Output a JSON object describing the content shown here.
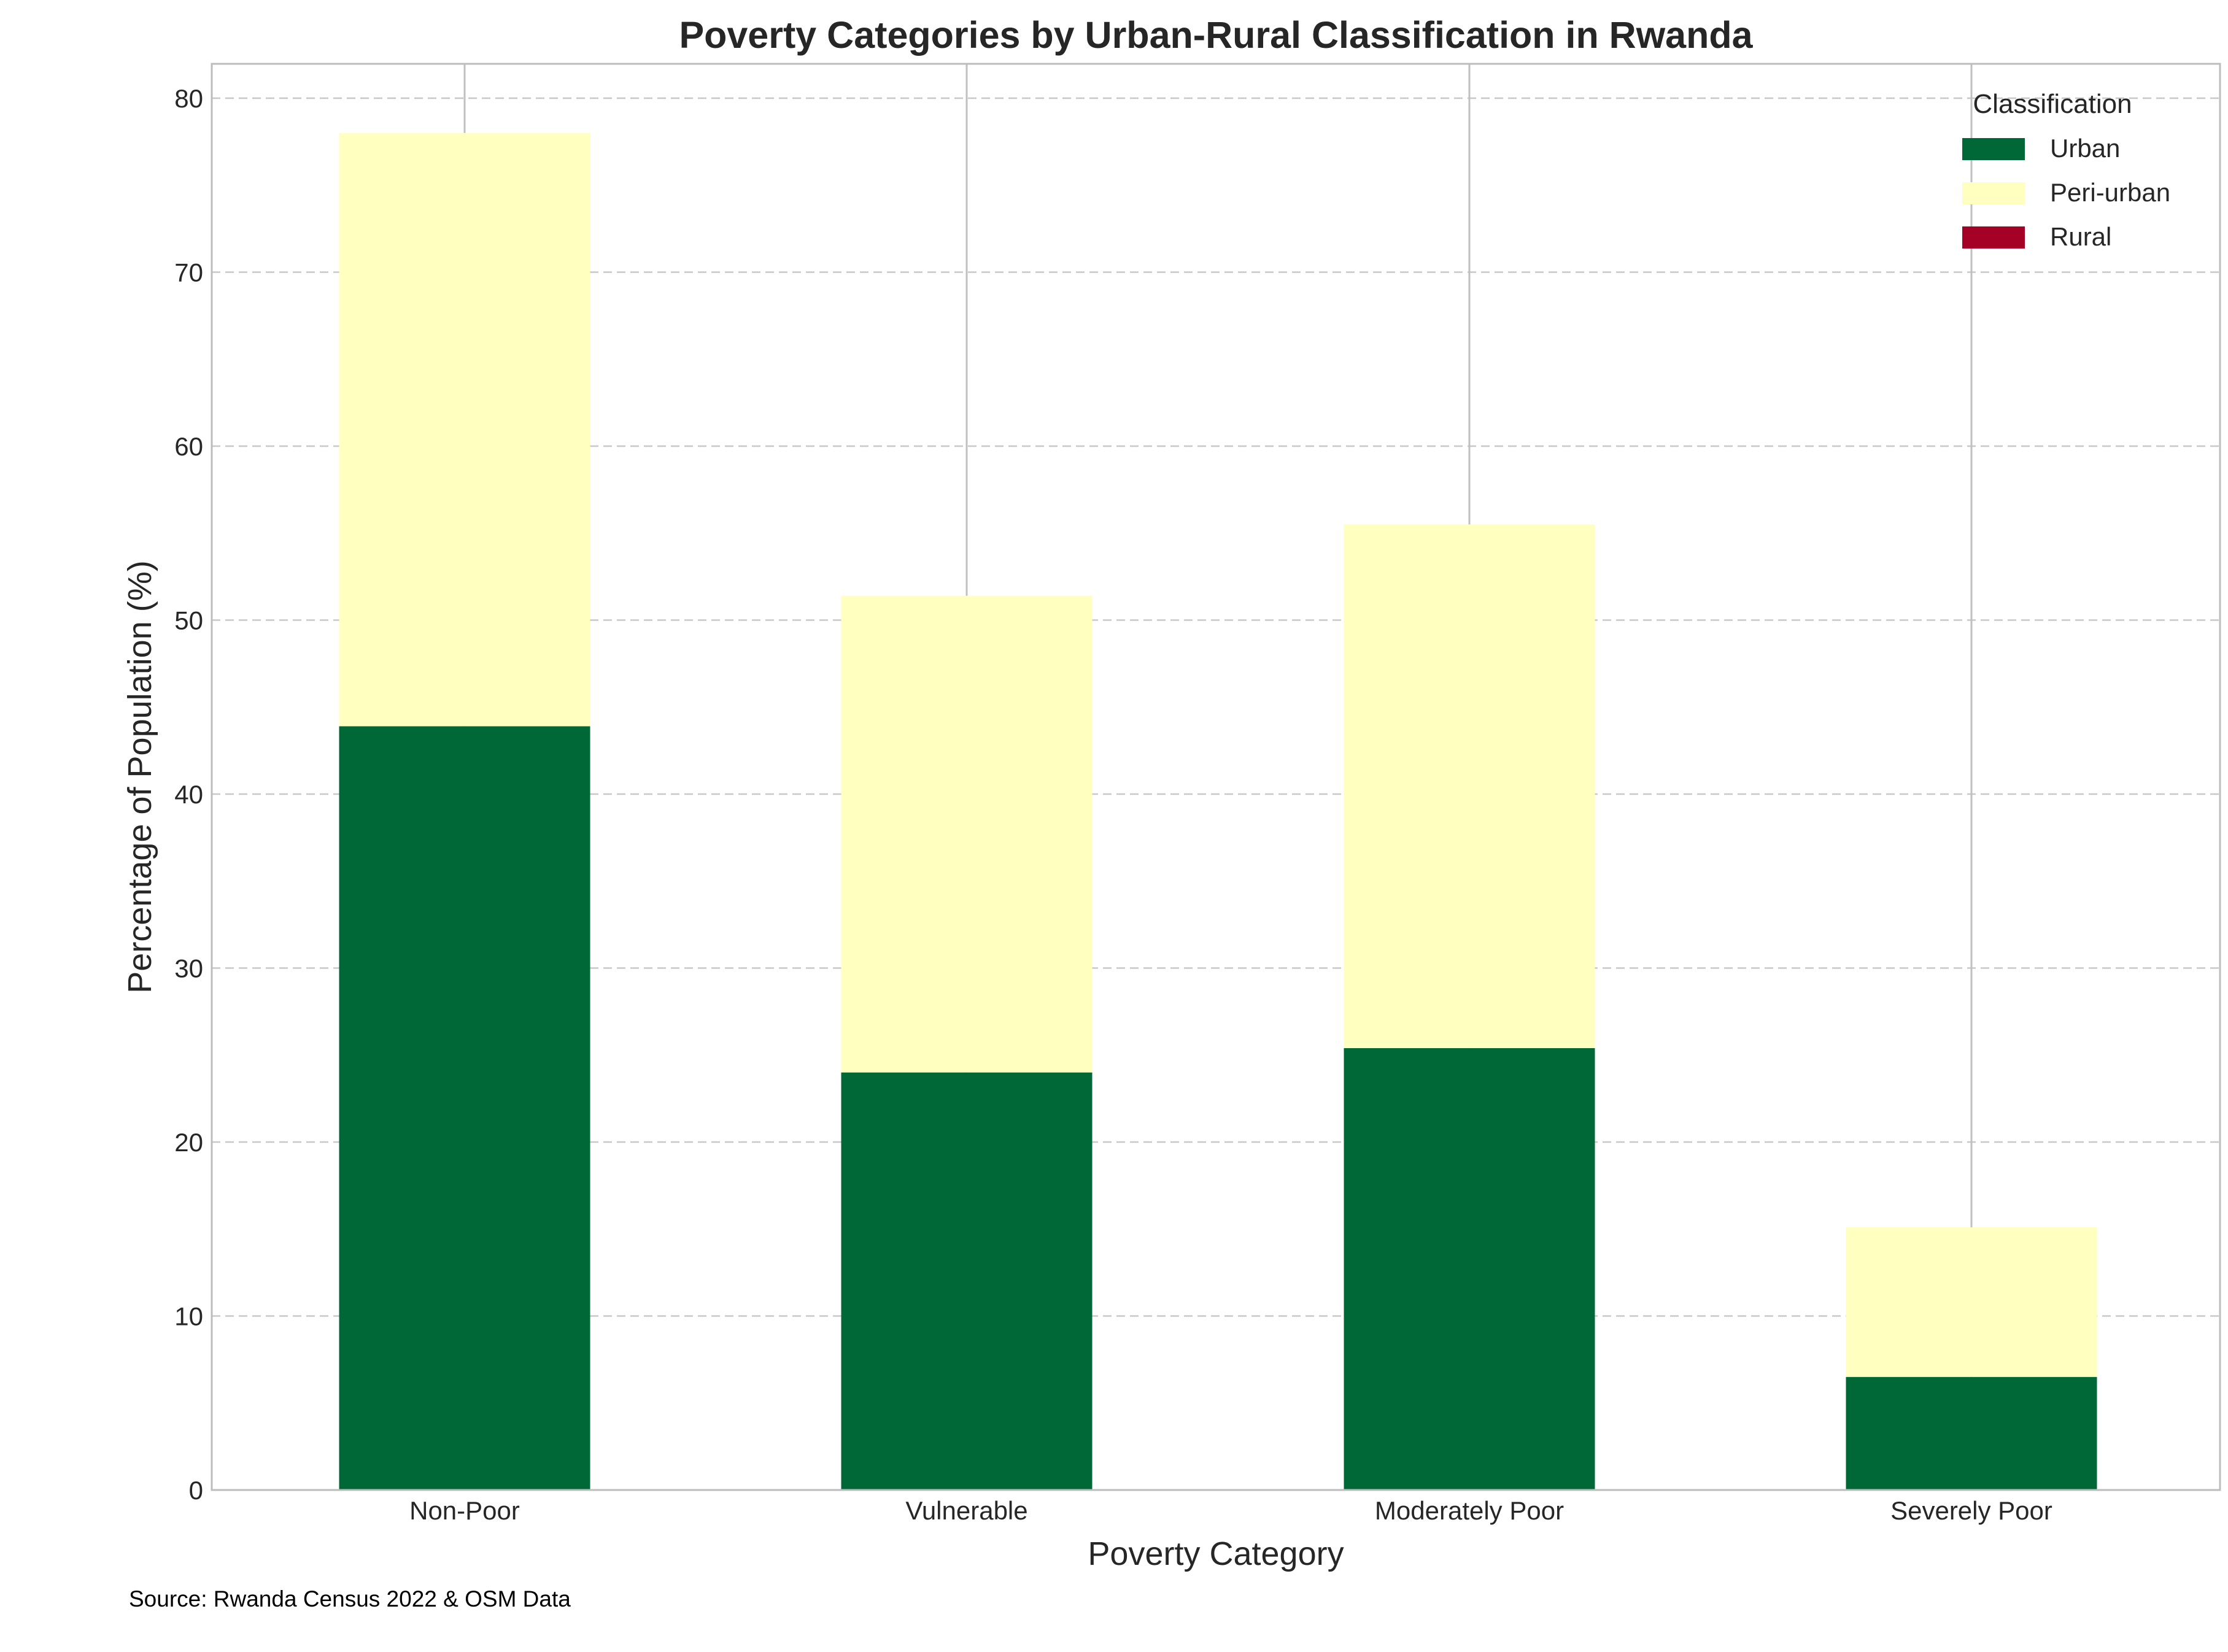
{
  "chart_data": {
    "type": "bar",
    "stacked": true,
    "title": "Poverty Categories by Urban-Rural Classification in Rwanda",
    "xlabel": "Poverty Category",
    "ylabel": "Percentage of Population (%)",
    "categories": [
      "Non-Poor",
      "Vulnerable",
      "Moderately Poor",
      "Severely Poor"
    ],
    "series": [
      {
        "name": "Urban",
        "color": "#006837",
        "values": [
          43.9,
          24.0,
          25.4,
          6.5
        ]
      },
      {
        "name": "Peri-urban",
        "color": "#ffffbf",
        "values": [
          34.1,
          27.4,
          30.1,
          8.6
        ]
      },
      {
        "name": "Rural",
        "color": "#a50026",
        "values": [
          0,
          0,
          0,
          0
        ]
      }
    ],
    "error_top": [
      82,
      82,
      82,
      82
    ],
    "ylim": [
      0,
      82
    ],
    "yticks": [
      0,
      10,
      20,
      30,
      40,
      50,
      60,
      70,
      80
    ],
    "grid": "y dashed",
    "legend": {
      "title": "Classification",
      "placement": "top-right"
    },
    "source": "Source: Rwanda Census 2022 & OSM Data"
  }
}
